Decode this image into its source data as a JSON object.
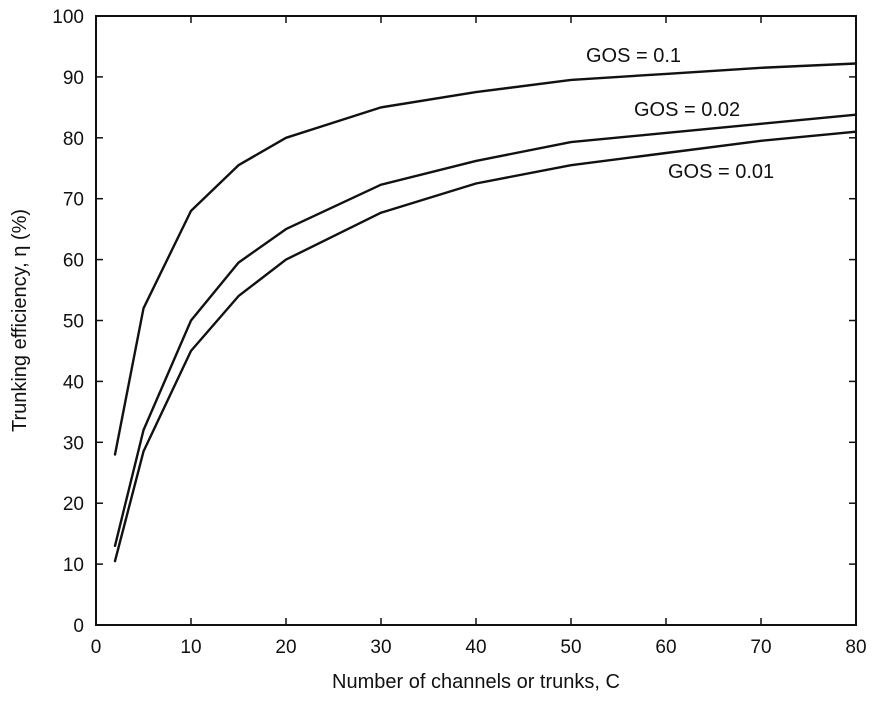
{
  "chart_data": {
    "type": "line",
    "title": "",
    "xlabel": "Number of channels or trunks, C",
    "ylabel": "Trunking efficiency, η (%)",
    "xlim": [
      0,
      80
    ],
    "ylim": [
      0,
      100
    ],
    "x_ticks": [
      0,
      10,
      20,
      30,
      40,
      50,
      60,
      70,
      80
    ],
    "y_ticks": [
      0,
      10,
      20,
      30,
      40,
      50,
      60,
      70,
      80,
      90,
      100
    ],
    "grid": false,
    "legend": "inline labels",
    "series": [
      {
        "name": "GOS = 0.1",
        "x": [
          2,
          5,
          10,
          15,
          20,
          30,
          40,
          50,
          60,
          70,
          80
        ],
        "values": [
          28,
          52,
          68,
          75.5,
          80,
          85,
          87.5,
          89.5,
          90.5,
          91.5,
          92.2
        ]
      },
      {
        "name": "GOS = 0.02",
        "x": [
          2,
          5,
          10,
          15,
          20,
          30,
          40,
          50,
          60,
          70,
          80
        ],
        "values": [
          13,
          32,
          50,
          59.5,
          65,
          72.3,
          76.2,
          79.3,
          80.8,
          82.3,
          83.8
        ]
      },
      {
        "name": "GOS = 0.01",
        "x": [
          2,
          5,
          10,
          15,
          20,
          30,
          40,
          50,
          60,
          70,
          80
        ],
        "values": [
          10.5,
          28.5,
          45,
          54,
          60,
          67.7,
          72.5,
          75.5,
          77.5,
          79.5,
          81
        ]
      }
    ]
  }
}
